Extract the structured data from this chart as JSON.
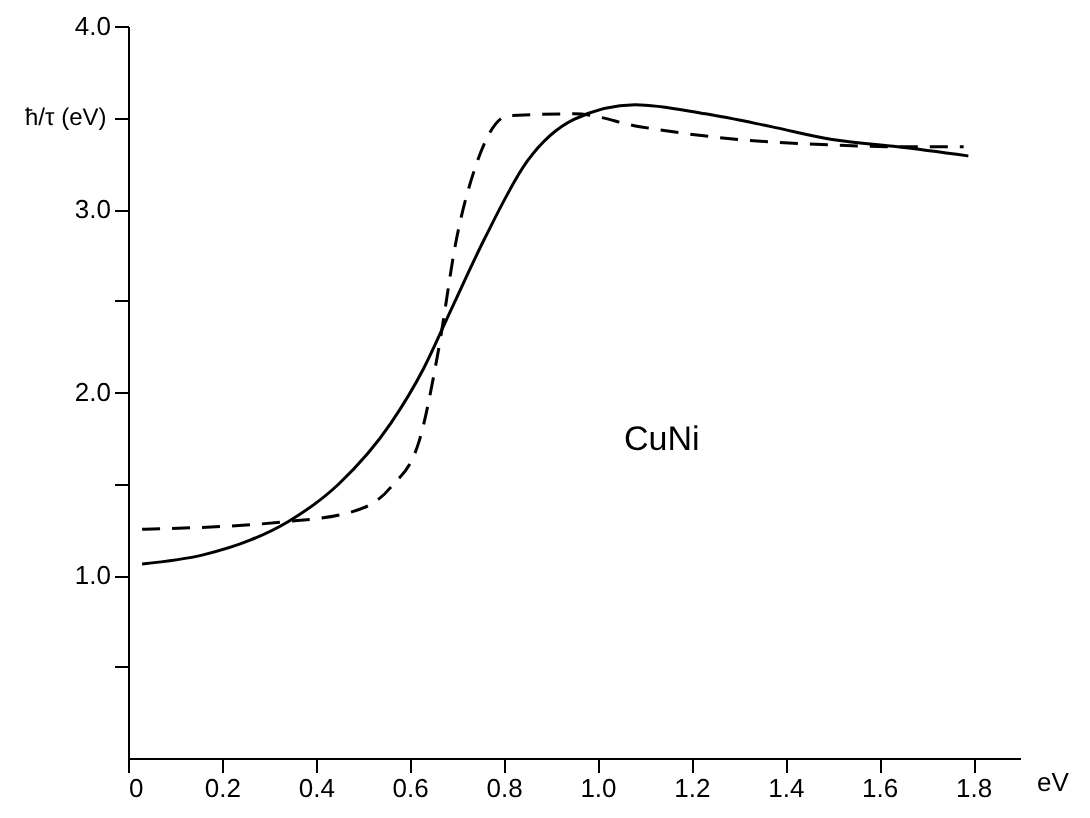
{
  "chart_data": {
    "type": "line",
    "xlabel": "eV",
    "ylabel": "ħ/τ (eV)",
    "annotations": [
      "CuNi"
    ],
    "xlim": [
      0,
      1.9
    ],
    "ylim": [
      0,
      4
    ],
    "xticks": [
      0,
      0.2,
      0.4,
      0.6,
      0.8,
      {
        "value": 1,
        "label": "1.0"
      },
      1.2,
      1.4,
      1.6,
      1.8
    ],
    "yticks": [
      {
        "value": 0.5,
        "label": null
      },
      {
        "value": 1,
        "label": "1.0"
      },
      {
        "value": 1.5,
        "label": null
      },
      {
        "value": 2,
        "label": "2.0"
      },
      {
        "value": 2.5,
        "label": null
      },
      {
        "value": 3,
        "label": "3.0"
      },
      {
        "value": 3.5,
        "label": null
      },
      {
        "value": 4,
        "label": "4.0"
      }
    ],
    "grid": false,
    "series": [
      {
        "color": "#000000",
        "line_style": "solid",
        "x": [
          0.03,
          0.16,
          0.26,
          0.34,
          0.45,
          0.56,
          0.63,
          0.69,
          0.76,
          0.85,
          0.95,
          1.08,
          1.23,
          1.37,
          1.5,
          1.64,
          1.79
        ],
        "values": [
          1.06,
          1.11,
          1.19,
          1.29,
          1.5,
          1.83,
          2.13,
          2.46,
          2.84,
          3.26,
          3.49,
          3.57,
          3.52,
          3.45,
          3.38,
          3.34,
          3.29
        ]
      },
      {
        "color": "#000000",
        "line_style": "dashed",
        "x": [
          0.03,
          0.33,
          0.47,
          0.56,
          0.62,
          0.66,
          0.7,
          0.74,
          0.81,
          0.95,
          1.09,
          1.3,
          1.5,
          1.64,
          1.78
        ],
        "values": [
          1.25,
          1.29,
          1.34,
          1.48,
          1.73,
          2.21,
          2.84,
          3.23,
          3.51,
          3.52,
          3.45,
          3.38,
          3.35,
          3.34,
          3.34
        ]
      }
    ]
  }
}
